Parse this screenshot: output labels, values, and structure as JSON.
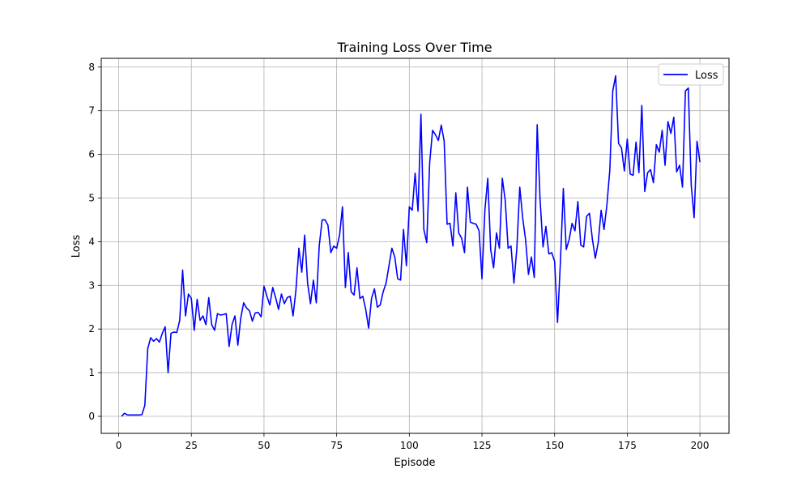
{
  "chart_data": {
    "type": "line",
    "title": "Training Loss Over Time",
    "xlabel": "Episode",
    "ylabel": "Loss",
    "xlim": [
      -6,
      210
    ],
    "ylim": [
      -0.39,
      8.2
    ],
    "xticks": [
      0,
      25,
      50,
      75,
      100,
      125,
      150,
      175,
      200
    ],
    "yticks": [
      0,
      1,
      2,
      3,
      4,
      5,
      6,
      7,
      8
    ],
    "grid": true,
    "legend": {
      "position": "top-right",
      "entries": [
        "Loss"
      ]
    },
    "series": [
      {
        "name": "Loss",
        "color": "#0000ff",
        "x": [
          1,
          2,
          3,
          4,
          5,
          6,
          7,
          8,
          9,
          10,
          11,
          12,
          13,
          14,
          15,
          16,
          17,
          18,
          19,
          20,
          21,
          22,
          23,
          24,
          25,
          26,
          27,
          28,
          29,
          30,
          31,
          32,
          33,
          34,
          35,
          36,
          37,
          38,
          39,
          40,
          41,
          42,
          43,
          44,
          45,
          46,
          47,
          48,
          49,
          50,
          51,
          52,
          53,
          54,
          55,
          56,
          57,
          58,
          59,
          60,
          61,
          62,
          63,
          64,
          65,
          66,
          67,
          68,
          69,
          70,
          71,
          72,
          73,
          74,
          75,
          76,
          77,
          78,
          79,
          80,
          81,
          82,
          83,
          84,
          85,
          86,
          87,
          88,
          89,
          90,
          91,
          92,
          93,
          94,
          95,
          96,
          97,
          98,
          99,
          100,
          101,
          102,
          103,
          104,
          105,
          106,
          107,
          108,
          109,
          110,
          111,
          112,
          113,
          114,
          115,
          116,
          117,
          118,
          119,
          120,
          121,
          122,
          123,
          124,
          125,
          126,
          127,
          128,
          129,
          130,
          131,
          132,
          133,
          134,
          135,
          136,
          137,
          138,
          139,
          140,
          141,
          142,
          143,
          144,
          145,
          146,
          147,
          148,
          149,
          150,
          151,
          152,
          153,
          154,
          155,
          156,
          157,
          158,
          159,
          160,
          161,
          162,
          163,
          164,
          165,
          166,
          167,
          168,
          169,
          170,
          171,
          172,
          173,
          174,
          175,
          176,
          177,
          178,
          179,
          180,
          181,
          182,
          183,
          184,
          185,
          186,
          187,
          188,
          189,
          190,
          191,
          192,
          193,
          194,
          195,
          196,
          197,
          198,
          199,
          200
        ],
        "values": [
          0.0,
          0.07,
          0.03,
          0.03,
          0.03,
          0.03,
          0.03,
          0.04,
          0.25,
          1.55,
          1.8,
          1.72,
          1.78,
          1.7,
          1.9,
          2.05,
          1.0,
          1.9,
          1.93,
          1.92,
          2.2,
          3.35,
          2.3,
          2.8,
          2.7,
          1.97,
          2.68,
          2.2,
          2.3,
          2.1,
          2.72,
          2.1,
          1.97,
          2.35,
          2.32,
          2.33,
          2.35,
          1.6,
          2.1,
          2.3,
          1.63,
          2.25,
          2.6,
          2.48,
          2.42,
          2.18,
          2.37,
          2.38,
          2.28,
          2.98,
          2.75,
          2.55,
          2.95,
          2.72,
          2.45,
          2.8,
          2.58,
          2.72,
          2.75,
          2.3,
          2.9,
          3.85,
          3.3,
          4.15,
          3.05,
          2.58,
          3.12,
          2.6,
          3.9,
          4.5,
          4.5,
          4.38,
          3.75,
          3.9,
          3.85,
          4.15,
          4.8,
          2.95,
          3.75,
          2.85,
          2.78,
          3.4,
          2.7,
          2.75,
          2.45,
          2.02,
          2.7,
          2.92,
          2.5,
          2.55,
          2.85,
          3.05,
          3.45,
          3.85,
          3.65,
          3.15,
          3.12,
          4.28,
          3.45,
          4.8,
          4.72,
          5.57,
          4.7,
          6.92,
          4.28,
          3.98,
          5.8,
          6.55,
          6.45,
          6.32,
          6.67,
          6.3,
          4.4,
          4.42,
          3.9,
          5.12,
          4.2,
          4.08,
          3.75,
          5.25,
          4.45,
          4.42,
          4.4,
          4.25,
          3.15,
          4.72,
          5.45,
          3.82,
          3.4,
          4.2,
          3.85,
          5.45,
          4.95,
          3.85,
          3.9,
          3.05,
          3.85,
          5.25,
          4.55,
          4.05,
          3.25,
          3.65,
          3.18,
          6.68,
          4.95,
          3.88,
          4.35,
          3.72,
          3.75,
          3.55,
          2.15,
          3.55,
          5.22,
          3.82,
          4.05,
          4.42,
          4.25,
          4.92,
          3.92,
          3.88,
          4.58,
          4.65,
          4.05,
          3.62,
          3.98,
          4.72,
          4.28,
          4.85,
          5.65,
          7.45,
          7.8,
          6.25,
          6.15,
          5.62,
          6.35,
          5.55,
          5.52,
          6.28,
          5.58,
          7.12,
          5.15,
          5.58,
          5.65,
          5.35,
          6.22,
          6.05,
          6.55,
          5.75,
          6.75,
          6.48,
          6.85,
          5.6,
          5.75,
          5.25,
          7.45,
          7.52,
          5.3,
          4.55,
          6.3,
          5.82
        ]
      }
    ]
  }
}
